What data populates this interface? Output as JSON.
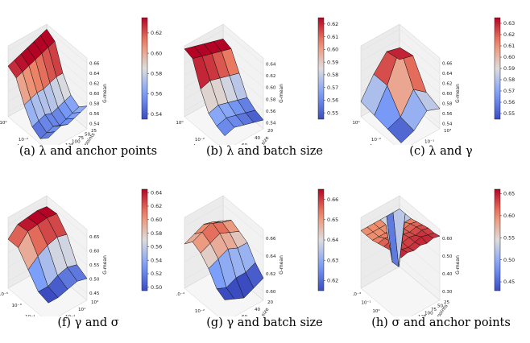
{
  "chart_data": [
    {
      "type": "surface3d",
      "caption_label": "(a)",
      "caption_text": "λ and anchor points",
      "x_axis": {
        "label": "λ",
        "ticks": [
          "10⁰",
          "10⁻²",
          "10⁻⁴"
        ]
      },
      "y_axis": {
        "label": "Anchor points",
        "ticks": [
          "25",
          "50",
          "75",
          "100",
          "125",
          "150",
          "175"
        ]
      },
      "z_axis": {
        "label": "G-mean",
        "ticks": [
          "0.54",
          "0.56",
          "0.58",
          "0.60",
          "0.62",
          "0.64",
          "0.66"
        ],
        "range": [
          0.53,
          0.67
        ]
      },
      "colorbar": {
        "ticks": [
          "0.54",
          "0.56",
          "0.58",
          "0.60",
          "0.62"
        ],
        "range": [
          0.535,
          0.635
        ]
      },
      "grid": "6x7",
      "z_values": [
        [
          0.66,
          0.655,
          0.65,
          0.645,
          0.64,
          0.635,
          0.63
        ],
        [
          0.65,
          0.645,
          0.64,
          0.635,
          0.63,
          0.625,
          0.62
        ],
        [
          0.6,
          0.6,
          0.595,
          0.59,
          0.59,
          0.585,
          0.58
        ],
        [
          0.57,
          0.565,
          0.56,
          0.555,
          0.56,
          0.555,
          0.55
        ],
        [
          0.56,
          0.555,
          0.55,
          0.545,
          0.55,
          0.545,
          0.54
        ],
        [
          0.575,
          0.57,
          0.565,
          0.56,
          0.565,
          0.56,
          0.555
        ]
      ]
    },
    {
      "type": "surface3d",
      "caption_label": "(b)",
      "caption_text": "λ and batch size",
      "x_axis": {
        "label": "λ",
        "ticks": [
          "10⁰",
          "10⁻²",
          "10⁻⁴"
        ]
      },
      "y_axis": {
        "label": "Batch size",
        "ticks": [
          "20",
          "40",
          "60",
          "80"
        ]
      },
      "z_axis": {
        "label": "G-mean",
        "ticks": [
          "0.54",
          "0.56",
          "0.58",
          "0.60",
          "0.62",
          "0.64"
        ],
        "range": [
          0.53,
          0.65
        ]
      },
      "colorbar": {
        "ticks": [
          "0.55",
          "0.56",
          "0.57",
          "0.58",
          "0.59",
          "0.60",
          "0.61",
          "0.62"
        ],
        "range": [
          0.545,
          0.625
        ]
      },
      "grid": "6x5",
      "z_values": [
        [
          0.625,
          0.63,
          0.635,
          0.64,
          0.645
        ],
        [
          0.62,
          0.625,
          0.63,
          0.635,
          0.64
        ],
        [
          0.59,
          0.595,
          0.6,
          0.605,
          0.6
        ],
        [
          0.56,
          0.565,
          0.57,
          0.575,
          0.57
        ],
        [
          0.55,
          0.555,
          0.56,
          0.565,
          0.56
        ],
        [
          0.545,
          0.55,
          0.555,
          0.56,
          0.555
        ]
      ]
    },
    {
      "type": "surface3d",
      "caption_label": "(c)",
      "caption_text": "λ and γ",
      "x_axis": {
        "label": "λ",
        "ticks": [
          "10⁰",
          "10⁻²",
          "10⁻⁴"
        ]
      },
      "y_axis": {
        "label": "γ",
        "ticks": [
          "10³",
          "10⁻¹",
          "10⁻³"
        ]
      },
      "z_axis": {
        "label": "G-mean",
        "ticks": [
          "0.54",
          "0.56",
          "0.58",
          "0.60",
          "0.62",
          "0.64",
          "0.66"
        ],
        "range": [
          0.53,
          0.67
        ]
      },
      "colorbar": {
        "ticks": [
          "0.55",
          "0.56",
          "0.57",
          "0.58",
          "0.59",
          "0.60",
          "0.61",
          "0.62",
          "0.63"
        ],
        "range": [
          0.545,
          0.635
        ]
      },
      "grid": "4x4",
      "z_values": [
        [
          0.6,
          0.63,
          0.6,
          0.56
        ],
        [
          0.63,
          0.66,
          0.6,
          0.555
        ],
        [
          0.58,
          0.6,
          0.56,
          0.55
        ],
        [
          0.57,
          0.58,
          0.555,
          0.545
        ]
      ]
    },
    {
      "type": "surface3d",
      "caption_label": "(f)",
      "caption_text": "γ and σ",
      "x_axis": {
        "label": "γ",
        "ticks": [
          "10⁻⁵",
          "10⁻³",
          "10⁻¹",
          "10¹"
        ]
      },
      "y_axis": {
        "label": "σ",
        "ticks": [
          "10³",
          "10¹",
          "10⁻¹",
          "10⁻³"
        ]
      },
      "z_axis": {
        "label": "G-mean",
        "ticks": [
          "0.45",
          "0.50",
          "0.55",
          "0.60",
          "0.65"
        ],
        "range": [
          0.42,
          0.68
        ]
      },
      "colorbar": {
        "ticks": [
          "0.50",
          "0.52",
          "0.54",
          "0.56",
          "0.58",
          "0.60",
          "0.62",
          "0.64"
        ],
        "range": [
          0.495,
          0.645
        ]
      },
      "grid": "5x5",
      "z_values": [
        [
          0.64,
          0.645,
          0.64,
          0.635,
          0.6
        ],
        [
          0.645,
          0.65,
          0.645,
          0.64,
          0.6
        ],
        [
          0.6,
          0.61,
          0.6,
          0.58,
          0.55
        ],
        [
          0.52,
          0.53,
          0.52,
          0.5,
          0.5
        ],
        [
          0.5,
          0.51,
          0.5,
          0.49,
          0.49
        ]
      ]
    },
    {
      "type": "surface3d",
      "caption_label": "(g)",
      "caption_text": "γ and batch size",
      "x_axis": {
        "label": "γ",
        "ticks": [
          "10⁻⁴",
          "10⁻²",
          "10⁰"
        ]
      },
      "y_axis": {
        "label": "Batch size",
        "ticks": [
          "20",
          "40",
          "60",
          "80"
        ]
      },
      "z_axis": {
        "label": "G-mean",
        "ticks": [
          "0.60",
          "0.62",
          "0.64",
          "0.66"
        ],
        "range": [
          0.59,
          0.67
        ]
      },
      "colorbar": {
        "ticks": [
          "0.62",
          "0.63",
          "0.64",
          "0.65",
          "0.66"
        ],
        "range": [
          0.615,
          0.665
        ]
      },
      "grid": "6x5",
      "z_values": [
        [
          0.64,
          0.645,
          0.65,
          0.645,
          0.64
        ],
        [
          0.65,
          0.655,
          0.66,
          0.655,
          0.65
        ],
        [
          0.645,
          0.65,
          0.655,
          0.65,
          0.645
        ],
        [
          0.64,
          0.64,
          0.645,
          0.64,
          0.635
        ],
        [
          0.625,
          0.62,
          0.62,
          0.615,
          0.62
        ],
        [
          0.615,
          0.61,
          0.605,
          0.61,
          0.615
        ]
      ]
    },
    {
      "type": "surface3d",
      "caption_label": "(h)",
      "caption_text": "σ and anchor points",
      "x_axis": {
        "label": "σ",
        "ticks": [
          "10⁻³",
          "10⁻¹",
          "10⁰",
          "10¹",
          "10³"
        ]
      },
      "y_axis": {
        "label": "Anchor points",
        "ticks": [
          "25",
          "50",
          "75",
          "100",
          "125",
          "150",
          "175"
        ]
      },
      "z_axis": {
        "label": "G-mean",
        "ticks": [
          "0.30",
          "0.40",
          "0.50",
          "0.60"
        ],
        "range": [
          0.25,
          0.68
        ]
      },
      "colorbar": {
        "ticks": [
          "0.45",
          "0.50",
          "0.55",
          "0.60",
          "0.65"
        ],
        "range": [
          0.43,
          0.66
        ]
      },
      "grid": "8x7",
      "z_values": [
        [
          0.6,
          0.6,
          0.6,
          0.6,
          0.6,
          0.6,
          0.6
        ],
        [
          0.6,
          0.3,
          0.35,
          0.6,
          0.6,
          0.6,
          0.6
        ],
        [
          0.6,
          0.6,
          0.6,
          0.6,
          0.6,
          0.6,
          0.6
        ],
        [
          0.61,
          0.62,
          0.61,
          0.62,
          0.61,
          0.62,
          0.61
        ],
        [
          0.62,
          0.63,
          0.62,
          0.63,
          0.62,
          0.63,
          0.62
        ],
        [
          0.63,
          0.64,
          0.63,
          0.64,
          0.63,
          0.64,
          0.63
        ],
        [
          0.63,
          0.64,
          0.65,
          0.64,
          0.63,
          0.64,
          0.65
        ],
        [
          0.64,
          0.65,
          0.64,
          0.65,
          0.64,
          0.65,
          0.64
        ]
      ]
    }
  ]
}
